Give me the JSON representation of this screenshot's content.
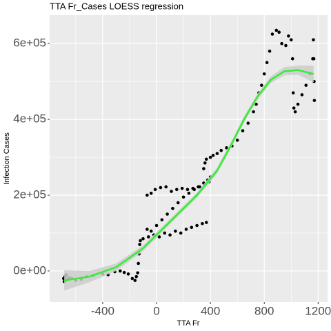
{
  "chart_data": {
    "type": "scatter",
    "title": "TTA Fr_Cases LOESS regression",
    "x_label": "TTA Fr",
    "y_label": "Infection Cases",
    "xlim": [
      -794,
      1270
    ],
    "ylim": [
      -82000,
      675000
    ],
    "xticks": [
      -400,
      0,
      400,
      800,
      1200
    ],
    "yticks": [
      {
        "value": 0,
        "label": "0e+00"
      },
      {
        "value": 200000,
        "label": "2e+05"
      },
      {
        "value": 400000,
        "label": "4e+05"
      },
      {
        "value": 600000,
        "label": "6e+05"
      }
    ],
    "grid": true,
    "color": "#000000",
    "x": [
      -690,
      -686,
      -680,
      -675,
      -670,
      -660,
      -650,
      -630,
      -600,
      -560,
      -520,
      -470,
      -400,
      -360,
      -310,
      -270,
      -240,
      -210,
      -180,
      -160,
      -150,
      -140,
      -135,
      -130,
      -125,
      -120,
      -100,
      -60,
      -20,
      20,
      60,
      100,
      140,
      180,
      220,
      260,
      300,
      340,
      370,
      -70,
      -40,
      0,
      40,
      80,
      120,
      160,
      200,
      240,
      280,
      320,
      350,
      380,
      400,
      -70,
      -40,
      -10,
      30,
      70,
      110,
      150,
      190,
      230,
      270,
      310,
      360,
      390,
      350,
      360,
      370,
      400,
      420,
      450,
      480,
      520,
      560,
      600,
      640,
      680,
      720,
      740,
      760,
      780,
      800,
      820,
      840,
      860,
      890,
      910,
      930,
      960,
      980,
      1000,
      1010,
      1015,
      1020,
      1030,
      1050,
      1080,
      1110,
      1140,
      1160,
      1165,
      1168,
      1170,
      1172
    ],
    "values": [
      -20000,
      -28000,
      -15000,
      -25000,
      -10000,
      -22000,
      -18000,
      -20000,
      -25000,
      -22000,
      -15000,
      -12000,
      -8000,
      -10000,
      -2000,
      0,
      -4000,
      -8000,
      -20000,
      -25000,
      -15000,
      -5000,
      20000,
      45000,
      70000,
      80000,
      85000,
      90000,
      95000,
      90000,
      100000,
      95000,
      105000,
      100000,
      110000,
      115000,
      120000,
      125000,
      128000,
      110000,
      105000,
      120000,
      135000,
      150000,
      165000,
      180000,
      195000,
      205000,
      215000,
      222000,
      232000,
      240000,
      248000,
      200000,
      205000,
      215000,
      220000,
      222000,
      210000,
      215000,
      218000,
      215000,
      218000,
      222000,
      227000,
      235000,
      270000,
      285000,
      295000,
      300000,
      305000,
      310000,
      318000,
      325000,
      330000,
      345000,
      370000,
      390000,
      420000,
      440000,
      470000,
      490000,
      520000,
      550000,
      580000,
      625000,
      635000,
      630000,
      600000,
      595000,
      620000,
      610000,
      560000,
      470000,
      430000,
      420000,
      440000,
      465000,
      490000,
      520000,
      560000,
      610000,
      560000,
      500000,
      450000
    ],
    "fit": {
      "color": "#33ee33",
      "band_color": "#cccccc",
      "x": [
        -686,
        -500,
        -300,
        -100,
        100,
        300,
        450,
        550,
        650,
        750,
        850,
        950,
        1050,
        1167
      ],
      "values": [
        -25000,
        -15000,
        10000,
        60000,
        130000,
        200000,
        265000,
        330000,
        400000,
        460000,
        505000,
        527000,
        530000,
        520000
      ],
      "lower": [
        -52000,
        -30000,
        0,
        52000,
        123000,
        193000,
        257000,
        322000,
        392000,
        452000,
        496000,
        516000,
        518000,
        498000
      ],
      "upper": [
        2000,
        0,
        20000,
        68000,
        137000,
        207000,
        273000,
        338000,
        408000,
        468000,
        514000,
        538000,
        542000,
        542000
      ]
    }
  }
}
